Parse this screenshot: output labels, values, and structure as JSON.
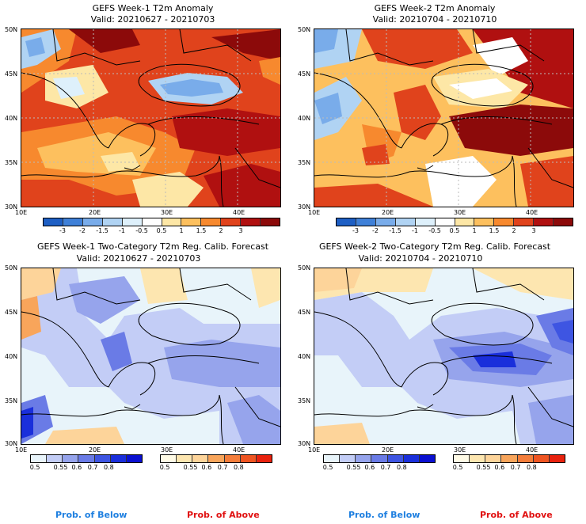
{
  "panels": [
    {
      "title": "GEFS Week-1 T2m Anomaly",
      "valid": "Valid: 20210627 - 20210703"
    },
    {
      "title": "GEFS Week-2 T2m Anomaly",
      "valid": "Valid: 20210704 - 20210710"
    },
    {
      "title": "GEFS Week-1 Two-Category T2m Reg. Calib. Forecast",
      "valid": "Valid: 20210627 - 20210703"
    },
    {
      "title": "GEFS Week-2 Two-Category T2m Reg. Calib. Forecast",
      "valid": "Valid: 20210704 - 20210710"
    }
  ],
  "axes": {
    "lat_labels": [
      "50N",
      "45N",
      "40N",
      "35N",
      "30N"
    ],
    "lon_labels": [
      "10E",
      "20E",
      "30E",
      "40E"
    ]
  },
  "anomaly_colorbar": {
    "ticks": [
      "-3",
      "-2",
      "-1.5",
      "-1",
      "-0.5",
      "0.5",
      "1",
      "1.5",
      "2",
      "3"
    ],
    "colors": [
      "#1e5fc4",
      "#3f80d8",
      "#79acea",
      "#b0d3f3",
      "#def0fb",
      "#ffffff",
      "#fde7a6",
      "#fdc05e",
      "#f7892e",
      "#e0431c",
      "#b01010",
      "#8c0a0a"
    ]
  },
  "prob_colorbar": {
    "ticks": [
      "0.5",
      "0.55",
      "0.6",
      "0.7",
      "0.8"
    ],
    "below_colors": [
      "#e8f4fa",
      "#c3cdf6",
      "#96a4ec",
      "#6a7be6",
      "#3e55e2",
      "#1a2fdb",
      "#0a10d0"
    ],
    "above_colors": [
      "#fffbe6",
      "#fde6b0",
      "#fdd49a",
      "#f8a55b",
      "#f47d3a",
      "#ef5522",
      "#e8220e"
    ]
  },
  "footer": {
    "below": "Prob. of Below",
    "above": "Prob. of Above"
  },
  "colors": {
    "below_text": "#1e7fe0",
    "above_text": "#e01010"
  },
  "chart_data": [
    {
      "type": "heatmap",
      "title": "GEFS Week-1 T2m Anomaly",
      "subtitle": "Valid: 20210627 - 20210703",
      "xlim": [
        10,
        46
      ],
      "ylim": [
        30,
        50
      ]
    },
    {
      "type": "heatmap",
      "title": "GEFS Week-2 T2m Anomaly",
      "subtitle": "Valid: 20210704 - 20210710",
      "xlim": [
        10,
        46
      ],
      "ylim": [
        30,
        50
      ]
    },
    {
      "type": "heatmap",
      "title": "GEFS Week-1 Two-Category T2m Reg. Calib. Forecast",
      "subtitle": "Valid: 20210627 - 20210703",
      "xlim": [
        10,
        46
      ],
      "ylim": [
        30,
        50
      ]
    },
    {
      "type": "heatmap",
      "title": "GEFS Week-2 Two-Category T2m Reg. Calib. Forecast",
      "subtitle": "Valid: 20210704 - 20210710",
      "xlim": [
        10,
        46
      ],
      "ylim": [
        30,
        50
      ]
    }
  ]
}
